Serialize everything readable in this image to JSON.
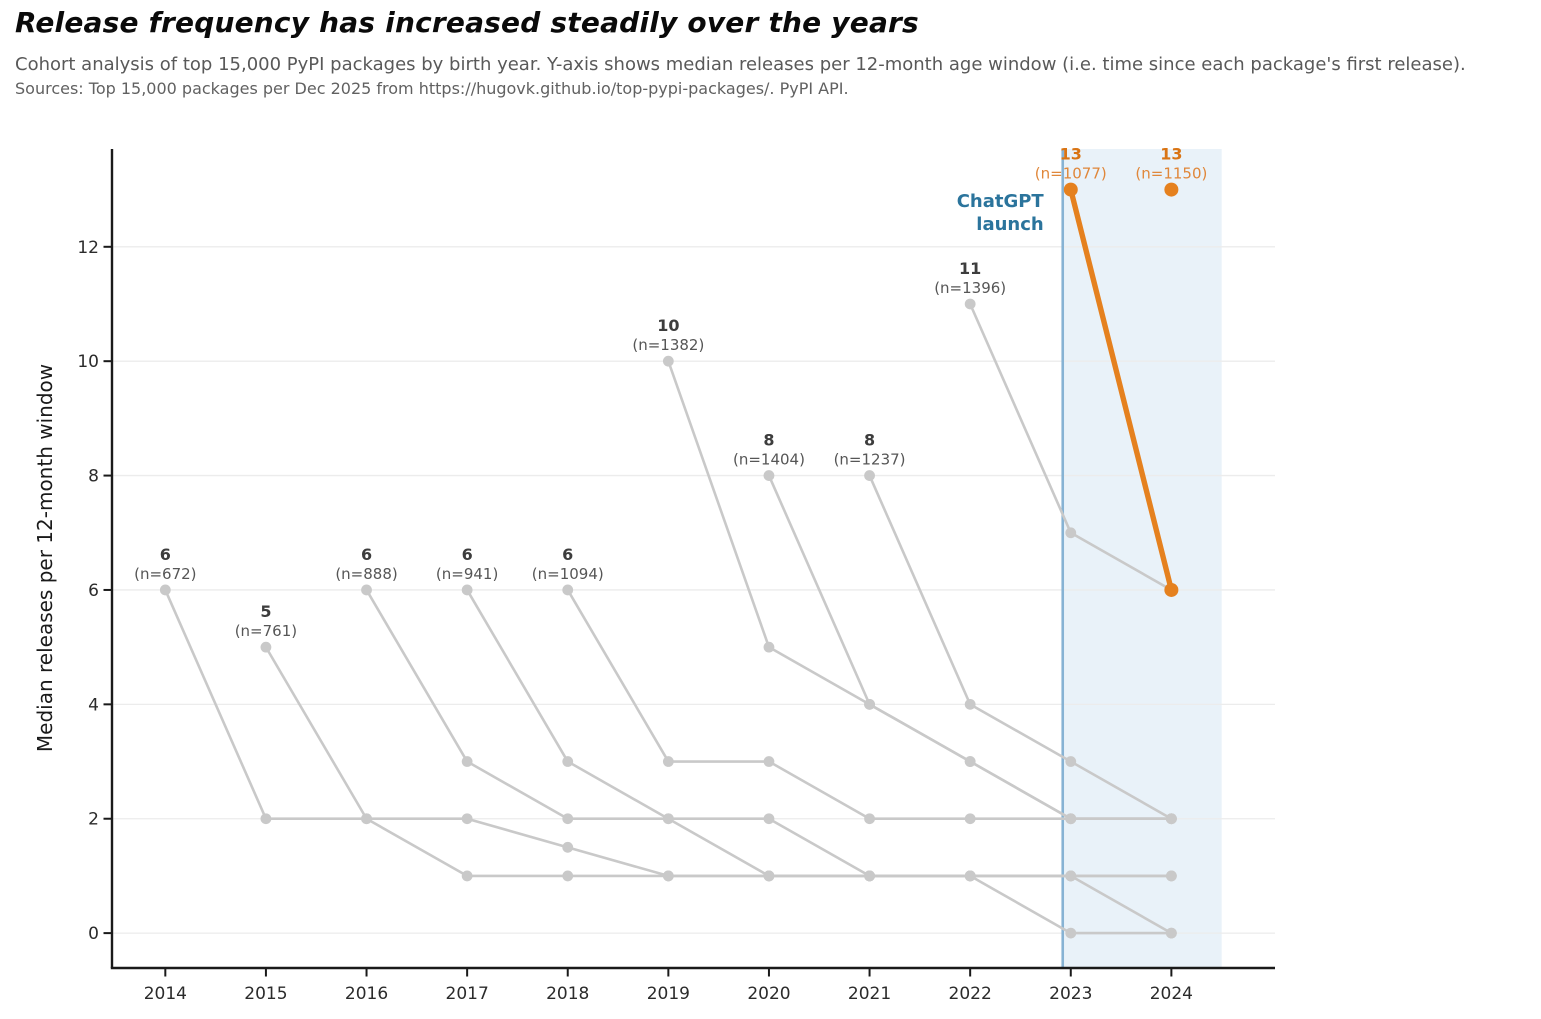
{
  "header": {
    "title": "Release frequency has increased steadily over the years",
    "subtitle": "Cohort analysis of top 15,000 PyPI packages by birth year. Y-axis shows median releases per 12-month age window (i.e. time since each package's first release).",
    "sources": "Sources: Top 15,000 packages per Dec 2025 from https://hugovk.github.io/top-pypi-packages/. PyPI API."
  },
  "chart_data": {
    "type": "line",
    "ylabel": "Median releases per 12-month window",
    "xlabel": "",
    "x_tick_values": [
      2014,
      2015,
      2016,
      2017,
      2018,
      2019,
      2020,
      2021,
      2022,
      2023,
      2024
    ],
    "y_ticks": [
      0,
      2,
      4,
      6,
      8,
      10,
      12
    ],
    "xlim": [
      2013.47,
      2025.03
    ],
    "ylim": [
      -0.61,
      13.71
    ],
    "grid": "horizontal-only",
    "legend": "none",
    "annotation": {
      "lines": [
        "ChatGPT",
        "launch"
      ],
      "x": 2022.92,
      "line_color": "#87b3d4",
      "text_color": "#2b749c"
    },
    "shaded_region": {
      "x0": 2022.92,
      "x1": 2024.5,
      "color": "#cfe3f2",
      "opacity": 0.45
    },
    "colors": {
      "series": "#c9c9c9",
      "highlight": "#e5811f",
      "value_label": "#3d3d3d",
      "n_label": "#565656",
      "highlight_value_label": "#d97414",
      "highlight_n_label": "#e0873a",
      "axis": "#1a1a1a",
      "tick_label": "#2b2b2b",
      "gridline": "#ececec"
    },
    "series": [
      {
        "name": "2014 cohort",
        "first_value_label": "6",
        "n_label": "(n=672)",
        "highlight": false,
        "x": [
          2014,
          2015,
          2016,
          2017,
          2018,
          2019,
          2020,
          2021,
          2022,
          2023,
          2024
        ],
        "y": [
          6,
          2,
          2,
          1,
          1,
          1,
          1,
          1,
          1,
          0,
          0
        ]
      },
      {
        "name": "2015 cohort",
        "first_value_label": "5",
        "n_label": "(n=761)",
        "highlight": false,
        "x": [
          2015,
          2016,
          2017,
          2018,
          2019,
          2020,
          2021,
          2022,
          2023,
          2024
        ],
        "y": [
          5,
          2,
          2,
          1.5,
          1,
          1,
          1,
          1,
          1,
          0
        ]
      },
      {
        "name": "2016 cohort",
        "first_value_label": "6",
        "n_label": "(n=888)",
        "highlight": false,
        "x": [
          2016,
          2017,
          2018,
          2019,
          2020,
          2021,
          2022,
          2023,
          2024
        ],
        "y": [
          6,
          3,
          2,
          2,
          1,
          1,
          1,
          1,
          1
        ]
      },
      {
        "name": "2017 cohort",
        "first_value_label": "6",
        "n_label": "(n=941)",
        "highlight": false,
        "x": [
          2017,
          2018,
          2019,
          2020,
          2021,
          2022,
          2023,
          2024
        ],
        "y": [
          6,
          3,
          2,
          2,
          1,
          1,
          1,
          1
        ]
      },
      {
        "name": "2018 cohort",
        "first_value_label": "6",
        "n_label": "(n=1094)",
        "highlight": false,
        "x": [
          2018,
          2019,
          2020,
          2021,
          2022,
          2023,
          2024
        ],
        "y": [
          6,
          3,
          3,
          2,
          2,
          2,
          2
        ]
      },
      {
        "name": "2019 cohort",
        "first_value_label": "10",
        "n_label": "(n=1382)",
        "highlight": false,
        "x": [
          2019,
          2020,
          2021,
          2022,
          2023,
          2024
        ],
        "y": [
          10,
          5,
          4,
          3,
          2,
          2
        ]
      },
      {
        "name": "2020 cohort",
        "first_value_label": "8",
        "n_label": "(n=1404)",
        "highlight": false,
        "x": [
          2020,
          2021,
          2022,
          2023,
          2024
        ],
        "y": [
          8,
          4,
          3,
          2,
          2
        ]
      },
      {
        "name": "2021 cohort",
        "first_value_label": "8",
        "n_label": "(n=1237)",
        "highlight": false,
        "x": [
          2021,
          2022,
          2023,
          2024
        ],
        "y": [
          8,
          4,
          3,
          2
        ]
      },
      {
        "name": "2022 cohort",
        "first_value_label": "11",
        "n_label": "(n=1396)",
        "highlight": false,
        "x": [
          2022,
          2023,
          2024
        ],
        "y": [
          11,
          7,
          6
        ]
      },
      {
        "name": "2023 cohort",
        "first_value_label": "13",
        "n_label": "(n=1077)",
        "highlight": true,
        "x": [
          2023,
          2024
        ],
        "y": [
          13,
          6
        ]
      },
      {
        "name": "2024 cohort",
        "first_value_label": "13",
        "n_label": "(n=1150)",
        "highlight": true,
        "x": [
          2024
        ],
        "y": [
          13
        ]
      }
    ]
  }
}
